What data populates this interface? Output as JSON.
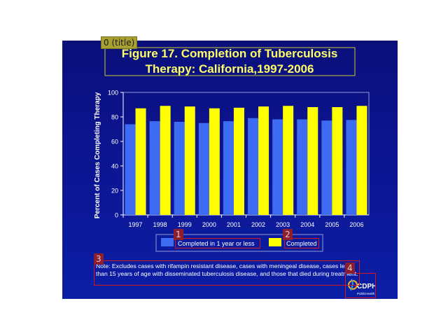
{
  "annotations": {
    "title_tag": "0 (title)",
    "legend_tag_1": "1",
    "legend_tag_2": "2",
    "note_tag": "3",
    "logo_tag": "4"
  },
  "footnote": "Note: Excludes cases with rifampin resistant disease, cases with meningeal disease, cases less than 15 years of age with disseminated tuberculosis disease, and those that died during treatment.",
  "logo": {
    "text": "CDPH",
    "subtext": "PublicHealth"
  },
  "colors": {
    "series_1": "#3d6cf2",
    "series_2": "#ffff00",
    "title_text": "#ffff66",
    "axis_text": "#ffffff"
  },
  "chart_data": {
    "type": "bar",
    "title": "Figure 17. Completion of Tuberculosis Therapy: California,1997-2006",
    "title_lines": [
      "Figure 17. Completion of Tuberculosis",
      "Therapy: California,1997-2006"
    ],
    "xlabel": "",
    "ylabel": "Percent of Cases Completing Therapy",
    "ylim": [
      0,
      100
    ],
    "yticks": [
      0,
      20,
      40,
      60,
      80,
      100
    ],
    "categories": [
      "1997",
      "1998",
      "1999",
      "2000",
      "2001",
      "2002",
      "2003",
      "2004",
      "2005",
      "2006"
    ],
    "series": [
      {
        "name": "Completed in 1 year or less",
        "values": [
          74,
          76.5,
          76,
          75,
          76.5,
          79,
          78,
          78,
          77,
          77.5
        ]
      },
      {
        "name": "Completed",
        "values": [
          87,
          89,
          88.5,
          87,
          87.5,
          88.5,
          89,
          88,
          88,
          89
        ]
      }
    ],
    "legend": "bottom",
    "grid": false
  }
}
